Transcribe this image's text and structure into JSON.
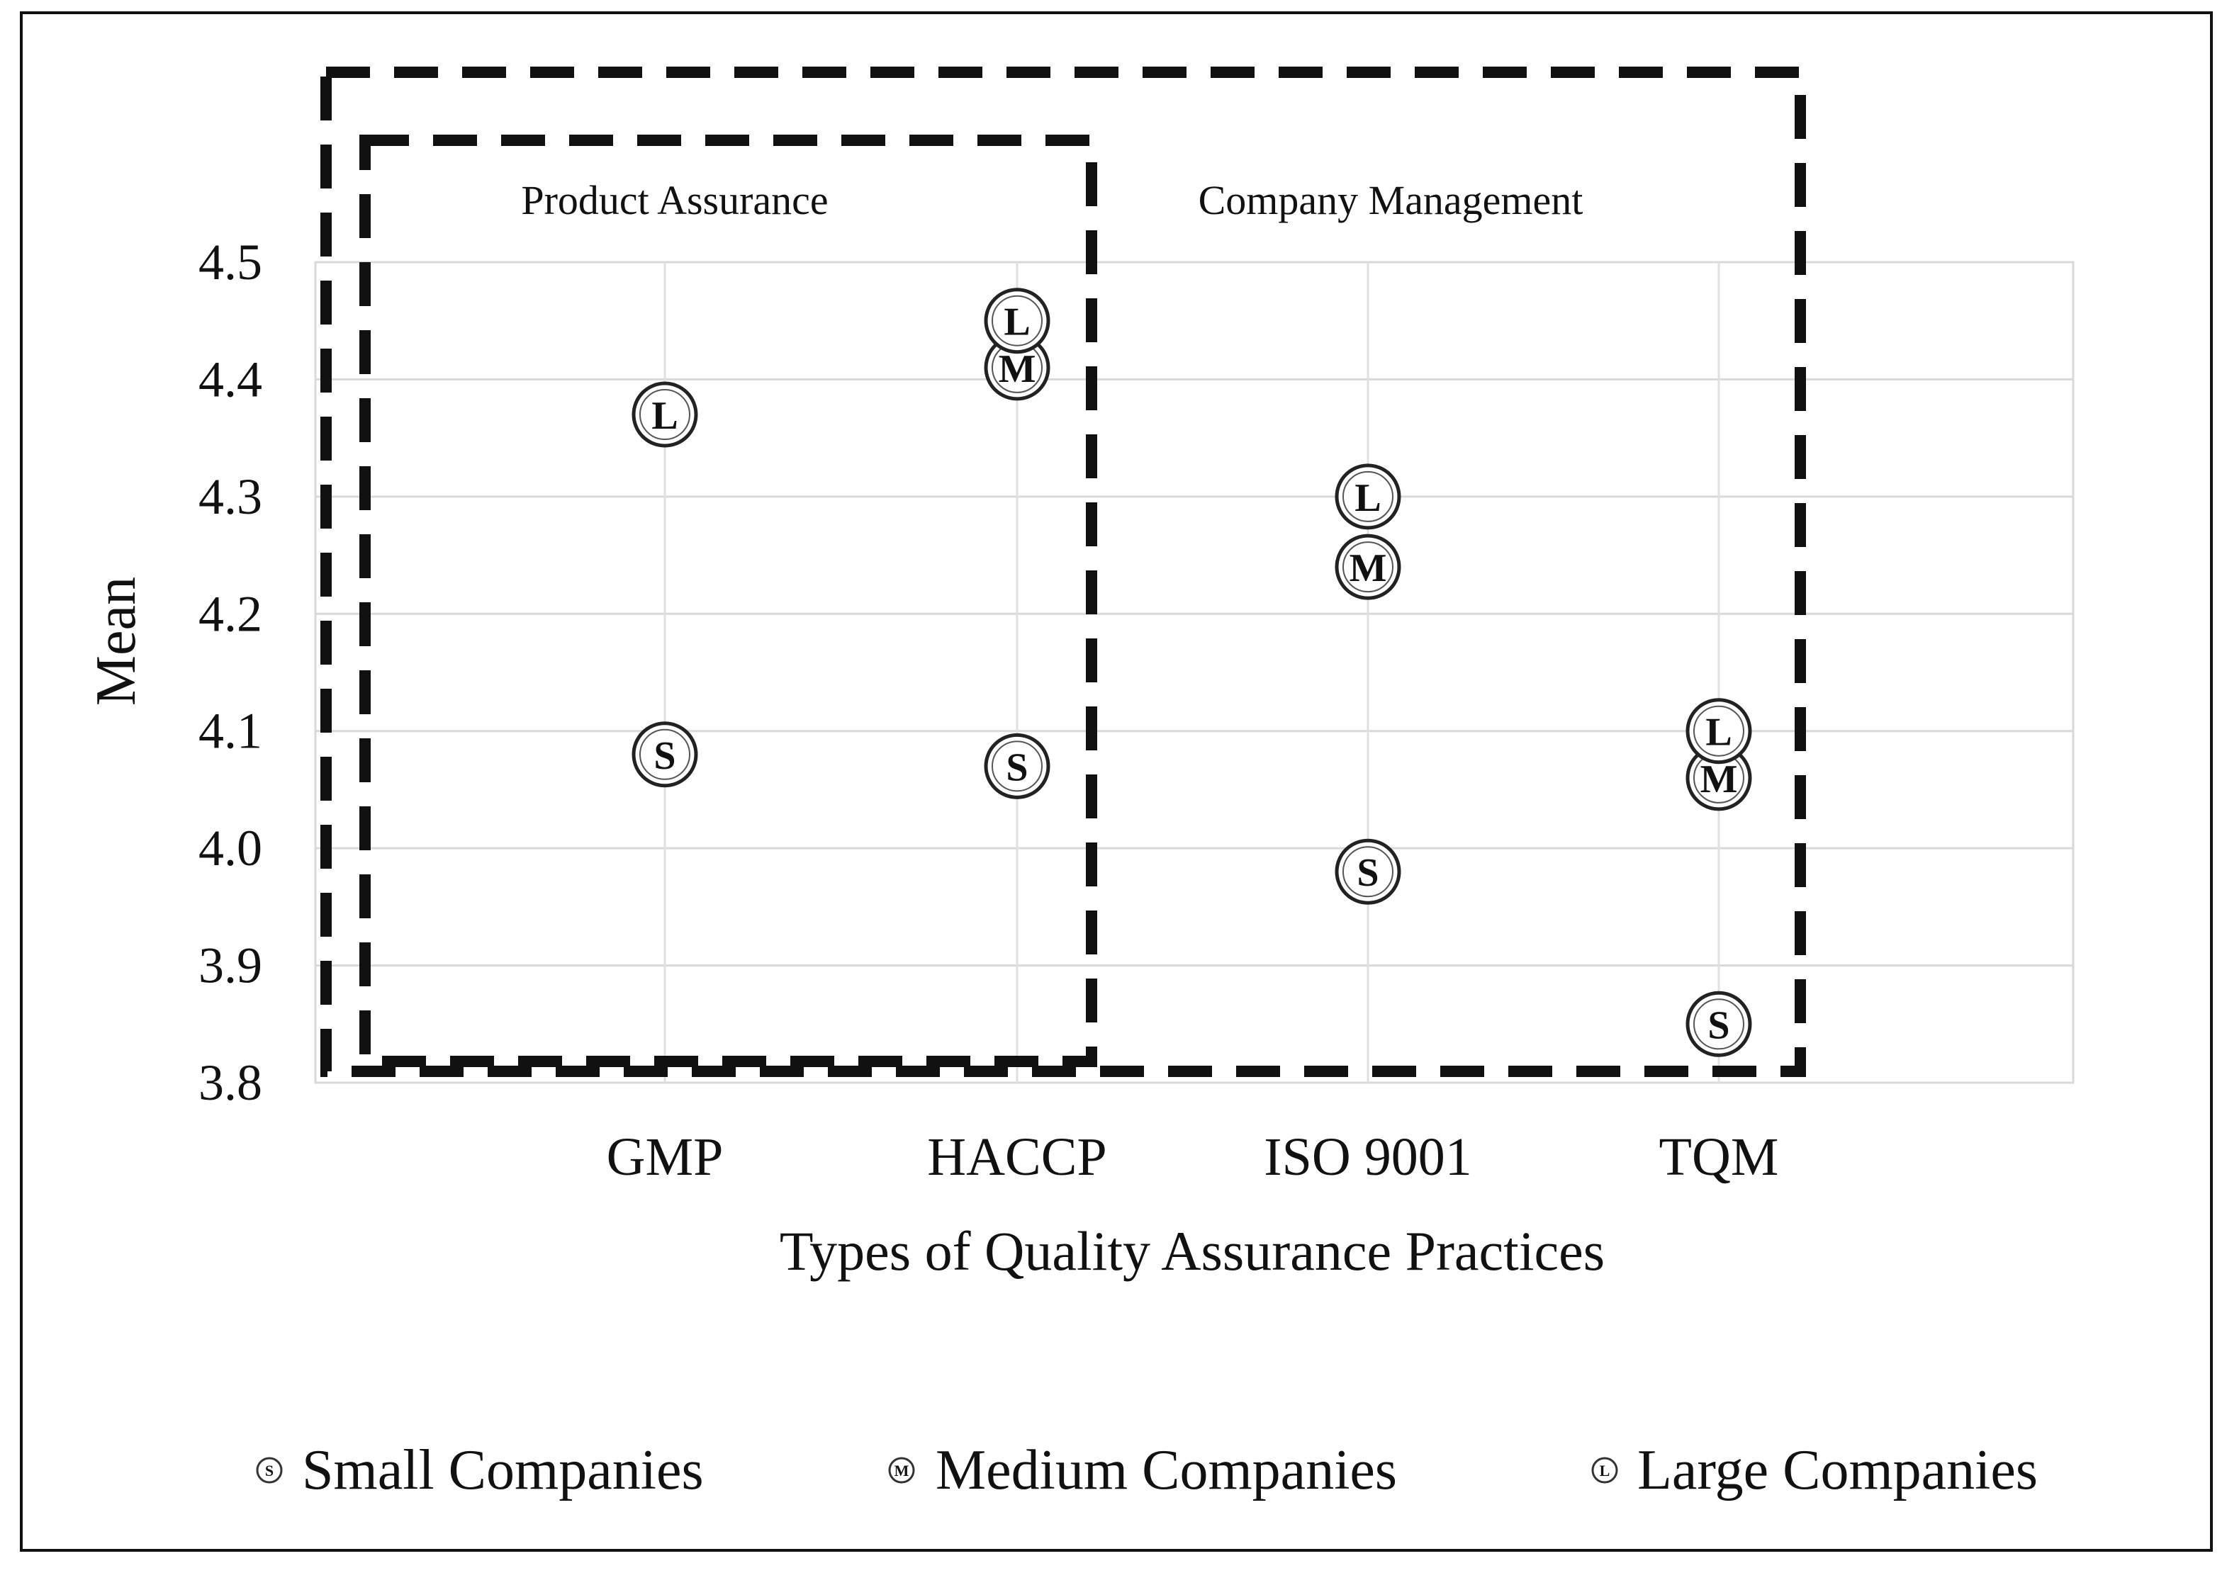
{
  "chart_data": {
    "type": "scatter",
    "title": "",
    "xlabel": "Types of Quality Assurance Practices",
    "ylabel": "Mean",
    "categories": [
      "GMP",
      "HACCP",
      "ISO 9001",
      "TQM"
    ],
    "ylim": [
      3.8,
      4.5
    ],
    "yticks": [
      "3.8",
      "3.9",
      "4.0",
      "4.1",
      "4.2",
      "4.3",
      "4.4",
      "4.5"
    ],
    "grid": true,
    "legend_position": "bottom",
    "series": [
      {
        "name": "Small Companies",
        "marker": "S",
        "values": [
          4.08,
          4.07,
          3.98,
          3.85
        ]
      },
      {
        "name": "Medium Companies",
        "marker": "M",
        "values": [
          null,
          4.41,
          4.24,
          4.06
        ]
      },
      {
        "name": "Large Companies",
        "marker": "L",
        "values": [
          4.37,
          4.45,
          4.3,
          4.1
        ]
      }
    ],
    "groups": [
      {
        "label": "Product Assurance",
        "categories": [
          "GMP",
          "HACCP"
        ]
      },
      {
        "label": "Company Management",
        "categories": [
          "GMP",
          "HACCP",
          "ISO 9001",
          "TQM"
        ]
      }
    ]
  }
}
